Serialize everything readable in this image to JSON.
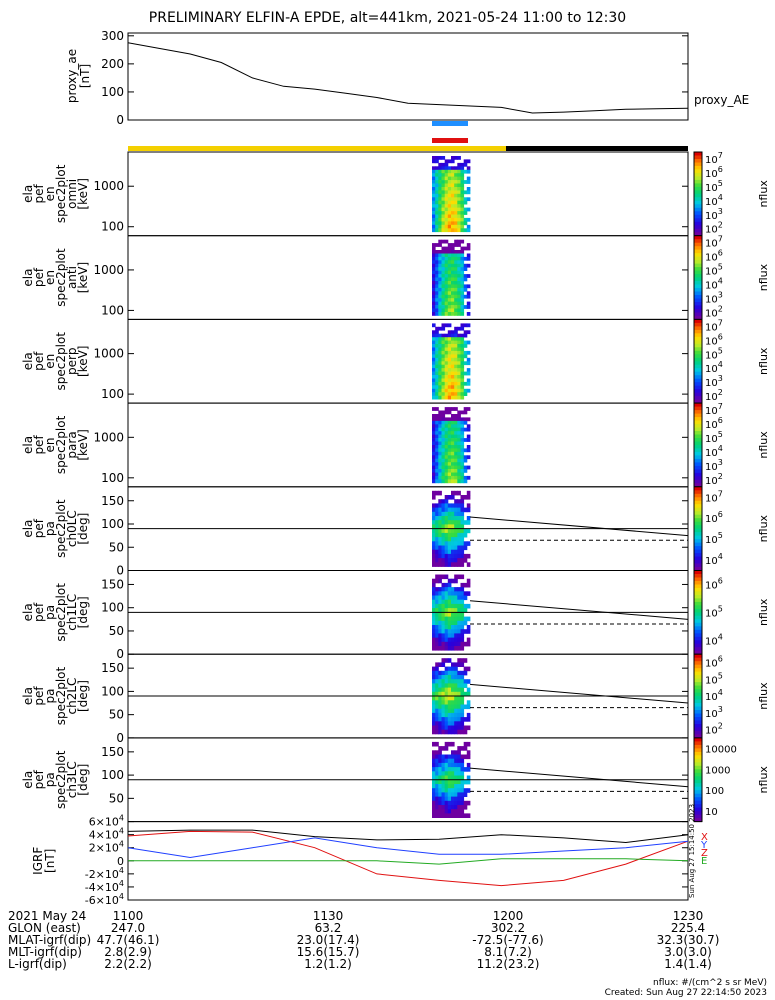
{
  "title": "PRELIMINARY ELFIN-A EPDE, alt=441km, 2021-05-24 11:00 to 12:30",
  "colors": {
    "orbit_day": "#f4d000",
    "orbit_night": "#000000",
    "science_blue": "#1f8fff",
    "science_red": "#e01010",
    "bx": "#e01010",
    "by": "#22aa22",
    "bz": "#1f3fff",
    "btot": "#000000"
  },
  "panels": [
    {
      "name": "proxy-ae",
      "ylabel": [
        "proxy_ae",
        "[nT]"
      ],
      "right_label": "proxy_AE"
    },
    {
      "name": "spec-omni",
      "ylabel": [
        "ela",
        "pef",
        "en",
        "spec2plot",
        "omni",
        "[keV]"
      ],
      "cb_label": "nflux"
    },
    {
      "name": "spec-anti",
      "ylabel": [
        "ela",
        "pef",
        "en",
        "spec2plot",
        "anti",
        "[keV]"
      ],
      "cb_label": "nflux"
    },
    {
      "name": "spec-perp",
      "ylabel": [
        "ela",
        "pef",
        "en",
        "spec2plot",
        "perp",
        "[keV]"
      ],
      "cb_label": "nflux"
    },
    {
      "name": "spec-para",
      "ylabel": [
        "ela",
        "pef",
        "en",
        "spec2plot",
        "para",
        "[keV]"
      ],
      "cb_label": "nflux"
    },
    {
      "name": "pa-ch0",
      "ylabel": [
        "ela",
        "pef",
        "pa",
        "spec2plot",
        "ch0LC",
        "[deg]"
      ],
      "cb_label": "nflux"
    },
    {
      "name": "pa-ch1",
      "ylabel": [
        "ela",
        "pef",
        "pa",
        "spec2plot",
        "ch1LC",
        "[deg]"
      ],
      "cb_label": "nflux"
    },
    {
      "name": "pa-ch2",
      "ylabel": [
        "ela",
        "pef",
        "pa",
        "spec2plot",
        "ch2LC",
        "[deg]"
      ],
      "cb_label": "nflux"
    },
    {
      "name": "pa-ch3",
      "ylabel": [
        "ela",
        "pef",
        "pa",
        "spec2plot",
        "ch3LC",
        "[deg]"
      ],
      "cb_label": "nflux"
    },
    {
      "name": "igrf",
      "ylabel": [
        "IGRF",
        "[nT]"
      ],
      "legend": [
        "X",
        "Y",
        "Z",
        "E"
      ]
    }
  ],
  "time_ticks": [
    "1100",
    "1130",
    "1200",
    "1230"
  ],
  "ephem_rows": [
    {
      "label": "2021 May 24",
      "values": [
        "1100",
        "1130",
        "1200",
        "1230"
      ]
    },
    {
      "label": "GLON (east)",
      "values": [
        "247.0",
        "63.2",
        "302.2",
        "225.4"
      ]
    },
    {
      "label": "MLAT-igrf(dip)",
      "values": [
        "47.7(46.1)",
        "23.0(17.4)",
        "-72.5(-77.6)",
        "32.3(30.7)"
      ]
    },
    {
      "label": "MLT-igrf(dip)",
      "values": [
        "2.8(2.9)",
        "15.6(15.7)",
        "8.1(7.2)",
        "3.0(3.0)"
      ]
    },
    {
      "label": "L-igrf(dip)",
      "values": [
        "2.2(2.2)",
        "1.2(1.2)",
        "11.2(23.2)",
        "1.4(1.4)"
      ]
    }
  ],
  "footer": {
    "units": "nflux: #/(cm^2 s sr MeV)",
    "created": "Created: Sun Aug 27 22:14:50 2023",
    "vertical_stamp": "Sun Aug 27 15:14:50 2023"
  },
  "chart_data": [
    {
      "type": "line",
      "name": "proxy_ae",
      "ylabel": "proxy_ae [nT]",
      "ylim": [
        0,
        310
      ],
      "yticks": [
        0,
        100,
        200,
        300
      ],
      "x": [
        "11:00",
        "11:05",
        "11:10",
        "11:15",
        "11:20",
        "11:25",
        "11:30",
        "11:35",
        "11:40",
        "11:45",
        "11:50",
        "11:55",
        "12:00",
        "12:05",
        "12:10",
        "12:15",
        "12:20",
        "12:25",
        "12:30"
      ],
      "values": [
        275,
        255,
        235,
        205,
        150,
        120,
        110,
        95,
        80,
        60,
        55,
        50,
        45,
        25,
        28,
        33,
        38,
        40,
        42
      ]
    },
    {
      "type": "heatmap",
      "name": "ela_pef_en_spec2plot_omni",
      "ylabel": "[keV]",
      "yscale": "log",
      "yticks": [
        100,
        1000
      ],
      "colorbar": {
        "label": "nflux",
        "scale": "log",
        "ticks": [
          "10^2",
          "10^3",
          "10^4",
          "10^5",
          "10^6",
          "10^7"
        ]
      },
      "time_range": [
        "11:44",
        "11:48"
      ]
    },
    {
      "type": "heatmap",
      "name": "ela_pef_en_spec2plot_anti",
      "ylabel": "[keV]",
      "yscale": "log",
      "yticks": [
        100,
        1000
      ],
      "colorbar": {
        "label": "nflux",
        "scale": "log",
        "ticks": [
          "10^2",
          "10^3",
          "10^4",
          "10^5",
          "10^6",
          "10^7"
        ]
      },
      "time_range": [
        "11:44",
        "11:48"
      ]
    },
    {
      "type": "heatmap",
      "name": "ela_pef_en_spec2plot_perp",
      "ylabel": "[keV]",
      "yscale": "log",
      "yticks": [
        100,
        1000
      ],
      "colorbar": {
        "label": "nflux",
        "scale": "log",
        "ticks": [
          "10^2",
          "10^3",
          "10^4",
          "10^5",
          "10^6",
          "10^7"
        ]
      },
      "time_range": [
        "11:44",
        "11:48"
      ]
    },
    {
      "type": "heatmap",
      "name": "ela_pef_en_spec2plot_para",
      "ylabel": "[keV]",
      "yscale": "log",
      "yticks": [
        100,
        1000
      ],
      "colorbar": {
        "label": "nflux",
        "scale": "log",
        "ticks": [
          "10^2",
          "10^3",
          "10^4",
          "10^5",
          "10^6",
          "10^7"
        ]
      },
      "time_range": [
        "11:44",
        "11:48"
      ]
    },
    {
      "type": "heatmap",
      "name": "ela_pef_pa_spec2plot_ch0LC",
      "ylabel": "[deg]",
      "ylim": [
        0,
        180
      ],
      "yticks": [
        0,
        50,
        100,
        150
      ],
      "colorbar": {
        "label": "nflux",
        "scale": "log",
        "ticks": [
          "10^4",
          "10^5",
          "10^6",
          "10^7"
        ]
      },
      "lines": {
        "solid_start": 115,
        "solid_end": 75,
        "dashed": 65,
        "ref": 90
      }
    },
    {
      "type": "heatmap",
      "name": "ela_pef_pa_spec2plot_ch1LC",
      "ylabel": "[deg]",
      "ylim": [
        0,
        180
      ],
      "yticks": [
        0,
        50,
        100,
        150
      ],
      "colorbar": {
        "label": "nflux",
        "scale": "log",
        "ticks": [
          "10^4",
          "10^5",
          "10^6"
        ]
      },
      "lines": {
        "solid_start": 115,
        "solid_end": 75,
        "dashed": 65,
        "ref": 90
      }
    },
    {
      "type": "heatmap",
      "name": "ela_pef_pa_spec2plot_ch2LC",
      "ylabel": "[deg]",
      "ylim": [
        0,
        180
      ],
      "yticks": [
        0,
        50,
        100,
        150
      ],
      "colorbar": {
        "label": "nflux",
        "scale": "log",
        "ticks": [
          "10^2",
          "10^3",
          "10^4",
          "10^5",
          "10^6"
        ]
      },
      "lines": {
        "solid_start": 115,
        "solid_end": 75,
        "dashed": 65,
        "ref": 90
      }
    },
    {
      "type": "heatmap",
      "name": "ela_pef_pa_spec2plot_ch3LC",
      "ylabel": "[deg]",
      "ylim": [
        0,
        180
      ],
      "yticks": [
        50,
        100,
        150
      ],
      "colorbar": {
        "label": "nflux",
        "scale": "log",
        "ticks": [
          "10",
          "100",
          "1000",
          "10000"
        ]
      },
      "lines": {
        "solid_start": 115,
        "solid_end": 75,
        "dashed": 65,
        "ref": 90
      }
    },
    {
      "type": "line",
      "name": "IGRF",
      "ylabel": "IGRF [nT]",
      "ylim": [
        -60000,
        60000
      ],
      "yticks": [
        "-6x10^4",
        "-4x10^4",
        "-2x10^4",
        "0",
        "2x10^4",
        "4x10^4",
        "6x10^4"
      ],
      "x": [
        "11:00",
        "11:10",
        "11:20",
        "11:30",
        "11:40",
        "11:50",
        "12:00",
        "12:10",
        "12:20",
        "12:30"
      ],
      "series": [
        {
          "name": "X",
          "values": [
            38000,
            45000,
            44000,
            20000,
            -20000,
            -30000,
            -38000,
            -30000,
            -5000,
            30000
          ]
        },
        {
          "name": "Y",
          "values": [
            0,
            0,
            0,
            0,
            0,
            -5000,
            3000,
            3000,
            3000,
            0
          ]
        },
        {
          "name": "Z",
          "values": [
            20000,
            5000,
            20000,
            35000,
            20000,
            10000,
            10000,
            15000,
            20000,
            30000
          ]
        },
        {
          "name": "E",
          "values": [
            45000,
            47000,
            47000,
            37000,
            32000,
            33000,
            40000,
            35000,
            28000,
            40000
          ]
        }
      ]
    }
  ]
}
